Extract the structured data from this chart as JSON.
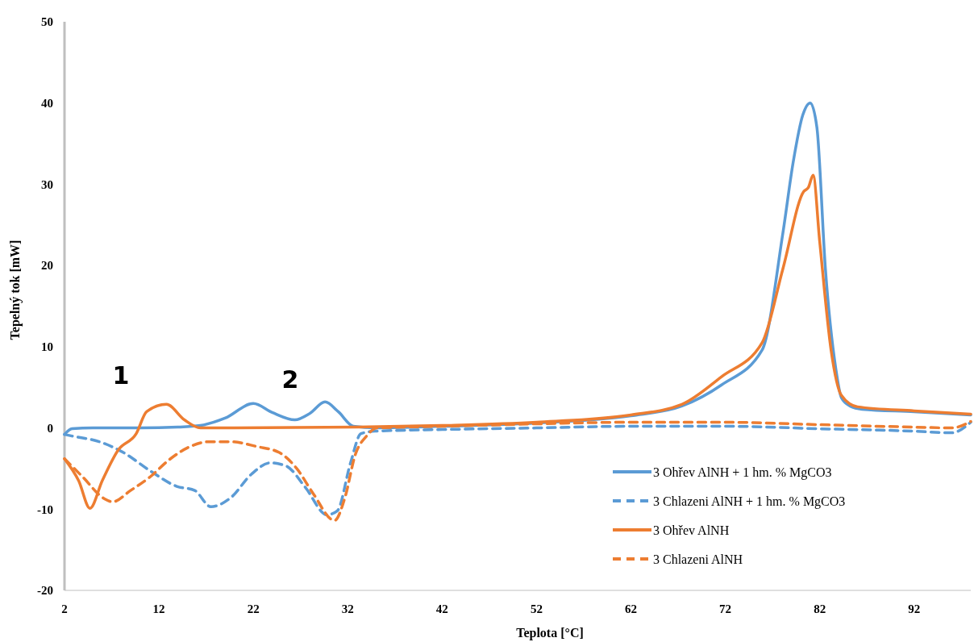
{
  "chart_data": {
    "type": "line",
    "xlabel": "Teplota [°C]",
    "ylabel": "Tepelný tok [mW]",
    "xlim": [
      2,
      98
    ],
    "xticks": [
      2,
      12,
      22,
      32,
      42,
      52,
      62,
      72,
      82,
      92
    ],
    "ylim": [
      -20,
      50
    ],
    "yticks": [
      -20,
      -10,
      0,
      10,
      20,
      30,
      40,
      50
    ],
    "grid": false,
    "legend": "bottom right",
    "marker": "none",
    "annotations": [
      "1",
      "2"
    ],
    "series": [
      {
        "name": "3 Ohřev AlNH + 1 hm. % MgCO3",
        "color": "#5b9bd5",
        "line_style": "solid",
        "x": [
          2,
          2.8,
          5,
          10,
          14,
          16.4,
          19,
          22,
          24,
          26.4,
          28,
          29.6,
          31,
          32.6,
          35,
          42,
          52,
          62,
          67.4,
          71.6,
          75.9,
          78.1,
          79.2,
          80.2,
          81,
          81.7,
          82.6,
          83.7,
          84.3,
          85.2,
          86.5,
          92,
          98
        ],
        "values": [
          -0.8,
          -0.1,
          0,
          0,
          0.1,
          0.3,
          1.2,
          3.0,
          1.9,
          1.0,
          1.8,
          3.2,
          2.0,
          0.2,
          0,
          0.2,
          0.6,
          1.5,
          2.7,
          5.3,
          9.6,
          24,
          32.8,
          38.5,
          40.0,
          37,
          19.6,
          7.3,
          3.7,
          2.7,
          2.3,
          2.0,
          1.6
        ]
      },
      {
        "name": "3 Chlazeni AlNH + 1 hm. % MgCO3",
        "color": "#5b9bd5",
        "line_style": "dashed",
        "x": [
          2,
          2.8,
          5.7,
          8.2,
          11.1,
          13.9,
          15.8,
          17.5,
          19.6,
          21.8,
          23.8,
          25.5,
          27.5,
          29.8,
          30.9,
          32.3,
          33.4,
          34.9,
          42,
          52,
          62,
          72,
          82,
          92,
          96,
          98
        ],
        "values": [
          -0.8,
          -1.0,
          -1.7,
          -3.0,
          -5.3,
          -7.2,
          -7.7,
          -9.7,
          -8.6,
          -5.7,
          -4.3,
          -4.7,
          -7.3,
          -10.7,
          -10.2,
          -4.3,
          -0.7,
          -0.4,
          -0.2,
          0,
          0.2,
          0.2,
          -0.1,
          -0.4,
          -0.6,
          0.7
        ]
      },
      {
        "name": "3 Ohřev AlNH",
        "color": "#ed7d31",
        "line_style": "solid",
        "x": [
          2,
          3.5,
          4.7,
          6,
          7.7,
          9.6,
          10.7,
          12.8,
          14.7,
          16.4,
          20,
          33,
          42,
          52,
          62,
          67.4,
          71.6,
          75.9,
          78.1,
          80.3,
          80.8,
          81.3,
          82,
          83.2,
          84.3,
          86,
          92,
          98
        ],
        "values": [
          -3.8,
          -6.5,
          -9.9,
          -6.5,
          -2.7,
          -0.7,
          2.0,
          2.9,
          1.0,
          0,
          0,
          0.1,
          0.3,
          0.7,
          1.6,
          2.9,
          6.3,
          10.5,
          19.6,
          29.1,
          29.6,
          31.1,
          22.9,
          9.6,
          4.0,
          2.6,
          2.1,
          1.7
        ]
      },
      {
        "name": "3 Chlazeni AlNH",
        "color": "#ed7d31",
        "line_style": "dashed",
        "x": [
          2,
          3.9,
          6.2,
          7.1,
          9.0,
          11.1,
          13.0,
          15.3,
          17.3,
          19.6,
          22.4,
          24.7,
          26.6,
          28.3,
          30.6,
          31.7,
          32.8,
          34.0,
          35.1,
          42,
          52,
          62,
          72,
          82,
          92,
          96,
          98
        ],
        "values": [
          -3.8,
          -6.0,
          -8.7,
          -9.1,
          -7.7,
          -6.0,
          -4.0,
          -2.3,
          -1.7,
          -1.7,
          -2.3,
          -3.0,
          -5.0,
          -8.0,
          -11.4,
          -8.6,
          -3.3,
          -1.0,
          0,
          0.2,
          0.5,
          0.7,
          0.7,
          0.4,
          0.1,
          0,
          0.8
        ]
      }
    ]
  }
}
